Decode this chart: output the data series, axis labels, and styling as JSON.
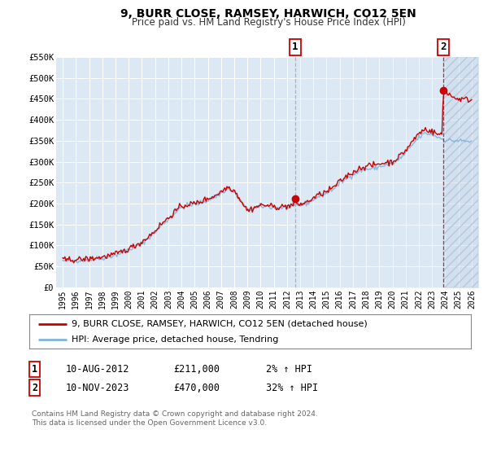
{
  "title": "9, BURR CLOSE, RAMSEY, HARWICH, CO12 5EN",
  "subtitle": "Price paid vs. HM Land Registry's House Price Index (HPI)",
  "ylim": [
    0,
    550000
  ],
  "xlim": [
    1994.5,
    2026.5
  ],
  "yticks": [
    0,
    50000,
    100000,
    150000,
    200000,
    250000,
    300000,
    350000,
    400000,
    450000,
    500000,
    550000
  ],
  "ytick_labels": [
    "£0",
    "£50K",
    "£100K",
    "£150K",
    "£200K",
    "£250K",
    "£300K",
    "£350K",
    "£400K",
    "£450K",
    "£500K",
    "£550K"
  ],
  "xticks": [
    1995,
    1996,
    1997,
    1998,
    1999,
    2000,
    2001,
    2002,
    2003,
    2004,
    2005,
    2006,
    2007,
    2008,
    2009,
    2010,
    2011,
    2012,
    2013,
    2014,
    2015,
    2016,
    2017,
    2018,
    2019,
    2020,
    2021,
    2022,
    2023,
    2024,
    2025,
    2026
  ],
  "bg_color": "#dce9f5",
  "grid_color": "#ffffff",
  "hatch_color": "#c8d8ea",
  "sale1_x": 2012.61,
  "sale1_y": 211000,
  "sale1_label": "1",
  "sale1_date": "10-AUG-2012",
  "sale1_price": "£211,000",
  "sale1_pct": "2% ↑ HPI",
  "sale1_vline_style": "--",
  "sale2_x": 2023.86,
  "sale2_y": 470000,
  "sale2_label": "2",
  "sale2_date": "10-NOV-2023",
  "sale2_price": "£470,000",
  "sale2_pct": "32% ↑ HPI",
  "sale2_vline_style": "--",
  "red_line_color": "#cc0000",
  "blue_line_color": "#7fb3d9",
  "marker_color": "#cc0000",
  "legend_label_red": "9, BURR CLOSE, RAMSEY, HARWICH, CO12 5EN (detached house)",
  "legend_label_blue": "HPI: Average price, detached house, Tendring",
  "footer1": "Contains HM Land Registry data © Crown copyright and database right 2024.",
  "footer2": "This data is licensed under the Open Government Licence v3.0."
}
